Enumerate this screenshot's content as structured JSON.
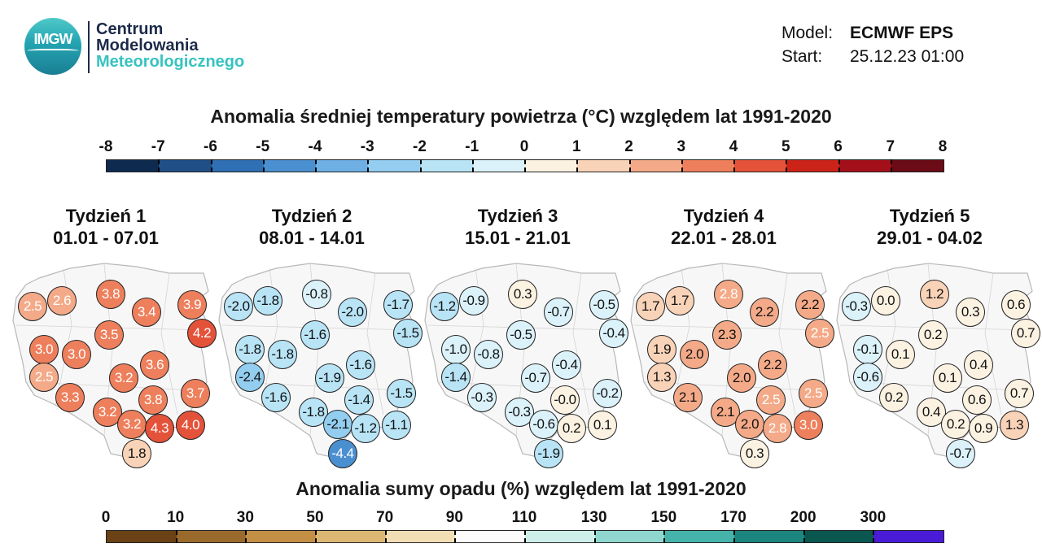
{
  "logo": {
    "letters": "IMGW",
    "lines": [
      "Centrum",
      "Modelowania",
      "Meteorologicznego"
    ]
  },
  "meta": {
    "model_label": "Model:",
    "model_value": "ECMWF EPS",
    "start_label": "Start:",
    "start_value": "25.12.23 01:00"
  },
  "colors": {
    "accent_teal": "#36c3c0",
    "logo_navy": "#1d2b4a"
  },
  "chart_data": {
    "type": "map-bubbles",
    "temperature_title": "Anomalia średniej temperatury powietrza (°C) względem lat 1991-2020",
    "temperature_scale": {
      "ticks": [
        "-8",
        "-7",
        "-6",
        "-5",
        "-4",
        "-3",
        "-2",
        "-1",
        "0",
        "1",
        "2",
        "3",
        "4",
        "5",
        "6",
        "7",
        "8"
      ],
      "colors": [
        "#0f2a4f",
        "#1f4f86",
        "#2f6fb3",
        "#4a8fd0",
        "#6fb0e4",
        "#93cdef",
        "#b8e4f6",
        "#dbf2fa",
        "#fbf2e2",
        "#f9d3b8",
        "#f4aa88",
        "#ee7f5c",
        "#e4523a",
        "#cc2319",
        "#a4101a",
        "#6a0b15"
      ]
    },
    "precip_title": "Anomalia sumy opadu (%) względem lat 1991-2020",
    "precip_scale": {
      "ticks": [
        "0",
        "10",
        "30",
        "50",
        "70",
        "90",
        "110",
        "130",
        "150",
        "170",
        "200",
        "300"
      ],
      "colors": [
        "#6b4215",
        "#9a6a2c",
        "#c38f45",
        "#dcb774",
        "#f1deb4",
        "#fbfbfb",
        "#cdeee9",
        "#8fd7ce",
        "#45b3a9",
        "#1c857d",
        "#0a5750",
        "#4a1bd6"
      ]
    },
    "weeks": [
      {
        "label": "Tydzień 1",
        "dates": "01.01 - 07.01",
        "values": [
          "2.5",
          "2.6",
          "3.8",
          "3.4",
          "3.9",
          "4.2",
          "3.5",
          "3.0",
          "3.0",
          "2.5",
          "3.2",
          "3.6",
          "3.3",
          "3.8",
          "3.7",
          "3.2",
          "3.2",
          "4.3",
          "4.0",
          "1.8"
        ]
      },
      {
        "label": "Tydzień 2",
        "dates": "08.01 - 14.01",
        "values": [
          "-2.0",
          "-1.8",
          "-0.8",
          "-2.0",
          "-1.7",
          "-1.5",
          "-1.6",
          "-1.8",
          "-1.8",
          "-2.4",
          "-1.9",
          "-1.6",
          "-1.6",
          "-1.4",
          "-1.5",
          "-1.8",
          "-2.1",
          "-1.2",
          "-1.1",
          "-4.4"
        ]
      },
      {
        "label": "Tydzień 3",
        "dates": "15.01 - 21.01",
        "values": [
          "-1.2",
          "-0.9",
          "0.3",
          "-0.7",
          "-0.5",
          "-0.4",
          "-0.5",
          "-1.0",
          "-0.8",
          "-1.4",
          "-0.7",
          "-0.4",
          "-0.3",
          "-0.0",
          "-0.2",
          "-0.3",
          "-0.6",
          "0.2",
          "0.1",
          "-1.9"
        ]
      },
      {
        "label": "Tydzień 4",
        "dates": "22.01 - 28.01",
        "values": [
          "1.7",
          "1.7",
          "2.8",
          "2.2",
          "2.2",
          "2.5",
          "2.3",
          "1.9",
          "2.0",
          "1.3",
          "2.0",
          "2.2",
          "2.1",
          "2.5",
          "2.5",
          "2.1",
          "2.0",
          "2.8",
          "3.0",
          "0.3"
        ]
      },
      {
        "label": "Tydzień 5",
        "dates": "29.01 - 04.02",
        "values": [
          "-0.3",
          "0.0",
          "1.2",
          "0.3",
          "0.6",
          "0.7",
          "0.2",
          "-0.1",
          "0.1",
          "-0.6",
          "0.1",
          "0.4",
          "0.2",
          "0.6",
          "0.7",
          "0.4",
          "0.2",
          "0.9",
          "1.3",
          "-0.7"
        ]
      }
    ]
  }
}
